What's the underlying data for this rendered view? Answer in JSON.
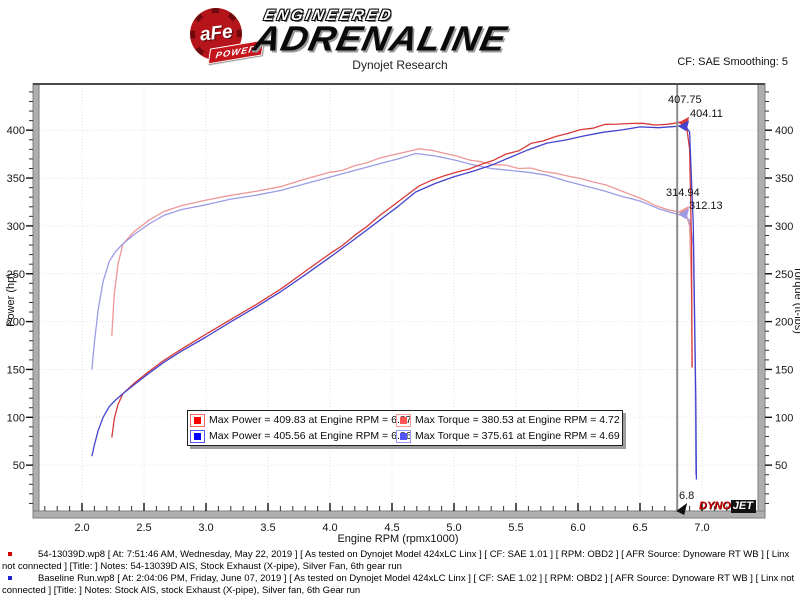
{
  "header": {
    "brand_afe": "aFe",
    "brand_power": "POWER",
    "brand_line1": "ENGINEERED",
    "brand_line2": "ADRENALINE",
    "title": "Dynojet Research",
    "smoothing": "CF: SAE Smoothing: 5"
  },
  "chart_data": {
    "type": "line",
    "title": "Dynojet Research",
    "xlabel": "Engine RPM (rpmx1000)",
    "ylabel_left": "Power (hp)",
    "ylabel_right": "Torque (ft-lbs)",
    "x_range": [
      1.65,
      7.42
    ],
    "y_range": [
      0,
      448
    ],
    "x_ticks": [
      2.0,
      2.5,
      3.0,
      3.5,
      4.0,
      4.5,
      5.0,
      5.5,
      6.0,
      6.5,
      7.0
    ],
    "y_ticks": [
      50,
      100,
      150,
      200,
      250,
      300,
      350,
      400
    ],
    "x_minor_step": 0.1,
    "y_minor_step": 10,
    "grid": "dotted",
    "legend_position": "bottom-center-inside",
    "cursor": {
      "rpm": 6.8,
      "label": "6.8"
    },
    "series": [
      {
        "name": "torque-54-13039D",
        "color": "#ee9797",
        "axis": "torque",
        "points": [
          [
            2.24,
            185
          ],
          [
            2.26,
            228
          ],
          [
            2.29,
            260
          ],
          [
            2.33,
            281
          ],
          [
            2.42,
            294
          ],
          [
            2.54,
            306
          ],
          [
            2.66,
            315
          ],
          [
            2.8,
            321
          ],
          [
            3.0,
            327
          ],
          [
            3.2,
            332
          ],
          [
            3.4,
            336
          ],
          [
            3.6,
            341
          ],
          [
            3.8,
            349
          ],
          [
            4.0,
            356
          ],
          [
            4.1,
            358
          ],
          [
            4.2,
            363
          ],
          [
            4.3,
            366
          ],
          [
            4.4,
            371
          ],
          [
            4.5,
            374
          ],
          [
            4.6,
            377
          ],
          [
            4.72,
            380.53
          ],
          [
            4.82,
            379
          ],
          [
            4.92,
            376
          ],
          [
            5.02,
            373
          ],
          [
            5.12,
            369
          ],
          [
            5.22,
            367
          ],
          [
            5.32,
            364
          ],
          [
            5.42,
            363.5
          ],
          [
            5.52,
            360
          ],
          [
            5.62,
            360.5
          ],
          [
            5.72,
            357
          ],
          [
            5.82,
            355
          ],
          [
            5.92,
            352
          ],
          [
            6.02,
            349.5
          ],
          [
            6.12,
            346
          ],
          [
            6.22,
            343
          ],
          [
            6.32,
            338
          ],
          [
            6.42,
            333
          ],
          [
            6.52,
            328
          ],
          [
            6.62,
            321.5
          ],
          [
            6.72,
            317
          ],
          [
            6.8,
            314.94
          ],
          [
            6.87,
            313.3
          ],
          [
            6.9,
            300
          ],
          [
            6.915,
            230
          ],
          [
            6.92,
            152
          ]
        ]
      },
      {
        "name": "torque-baseline",
        "color": "#9c9ce6",
        "axis": "torque",
        "points": [
          [
            2.08,
            150
          ],
          [
            2.1,
            178
          ],
          [
            2.13,
            212
          ],
          [
            2.17,
            242
          ],
          [
            2.22,
            263
          ],
          [
            2.27,
            273
          ],
          [
            2.32,
            280
          ],
          [
            2.42,
            291
          ],
          [
            2.54,
            302
          ],
          [
            2.66,
            311
          ],
          [
            2.8,
            317
          ],
          [
            3.0,
            322
          ],
          [
            3.2,
            328
          ],
          [
            3.4,
            332
          ],
          [
            3.6,
            337
          ],
          [
            3.8,
            344
          ],
          [
            4.0,
            351
          ],
          [
            4.2,
            358
          ],
          [
            4.4,
            365
          ],
          [
            4.55,
            370
          ],
          [
            4.69,
            375.61
          ],
          [
            4.85,
            373
          ],
          [
            5.0,
            369
          ],
          [
            5.15,
            364
          ],
          [
            5.3,
            360
          ],
          [
            5.45,
            358
          ],
          [
            5.6,
            356
          ],
          [
            5.75,
            353
          ],
          [
            5.9,
            347
          ],
          [
            6.05,
            342
          ],
          [
            6.2,
            337
          ],
          [
            6.35,
            331
          ],
          [
            6.5,
            326
          ],
          [
            6.65,
            318
          ],
          [
            6.8,
            312.13
          ],
          [
            6.86,
            310.5
          ],
          [
            6.9,
            306
          ],
          [
            6.93,
            280
          ],
          [
            6.945,
            150
          ],
          [
            6.95,
            40
          ]
        ]
      },
      {
        "name": "power-54-13039D",
        "color": "#d93a3a",
        "axis": "power",
        "points": [
          [
            2.24,
            78.9
          ],
          [
            2.26,
            98.1
          ],
          [
            2.29,
            113.4
          ],
          [
            2.33,
            124.7
          ],
          [
            2.42,
            135.5
          ],
          [
            2.54,
            148.0
          ],
          [
            2.66,
            159.5
          ],
          [
            2.8,
            171.1
          ],
          [
            3.0,
            186.8
          ],
          [
            3.2,
            202.3
          ],
          [
            3.4,
            217.5
          ],
          [
            3.6,
            233.7
          ],
          [
            3.8,
            252.5
          ],
          [
            4.0,
            271.1
          ],
          [
            4.1,
            279.5
          ],
          [
            4.2,
            290.3
          ],
          [
            4.3,
            299.6
          ],
          [
            4.4,
            310.8
          ],
          [
            4.5,
            320.4
          ],
          [
            4.6,
            330.2
          ],
          [
            4.72,
            341.9
          ],
          [
            4.82,
            347.8
          ],
          [
            4.92,
            352.2
          ],
          [
            5.02,
            356.2
          ],
          [
            5.12,
            359.4
          ],
          [
            5.22,
            364.4
          ],
          [
            5.32,
            368.6
          ],
          [
            5.42,
            375.1
          ],
          [
            5.52,
            378.4
          ],
          [
            5.62,
            386.2
          ],
          [
            5.72,
            388.8
          ],
          [
            5.82,
            393.4
          ],
          [
            5.92,
            396.7
          ],
          [
            6.02,
            400.6
          ],
          [
            6.12,
            402.1
          ],
          [
            6.22,
            406.2
          ],
          [
            6.32,
            406.4
          ],
          [
            6.42,
            407.0
          ],
          [
            6.52,
            407.2
          ],
          [
            6.62,
            405.4
          ],
          [
            6.72,
            406.2
          ],
          [
            6.8,
            407.75
          ],
          [
            6.87,
            409.83
          ],
          [
            6.9,
            380
          ],
          [
            6.915,
            280
          ],
          [
            6.92,
            152
          ]
        ]
      },
      {
        "name": "power-baseline",
        "color": "#4343cf",
        "axis": "power",
        "points": [
          [
            2.08,
            59.4
          ],
          [
            2.1,
            71.2
          ],
          [
            2.13,
            86.0
          ],
          [
            2.17,
            100.0
          ],
          [
            2.22,
            111.2
          ],
          [
            2.27,
            118.0
          ],
          [
            2.32,
            123.7
          ],
          [
            2.42,
            134.1
          ],
          [
            2.54,
            146.1
          ],
          [
            2.66,
            157.5
          ],
          [
            2.8,
            169.0
          ],
          [
            3.0,
            183.9
          ],
          [
            3.2,
            199.8
          ],
          [
            3.4,
            214.9
          ],
          [
            3.6,
            231.0
          ],
          [
            3.8,
            248.9
          ],
          [
            4.0,
            267.3
          ],
          [
            4.2,
            286.3
          ],
          [
            4.4,
            305.8
          ],
          [
            4.55,
            320.5
          ],
          [
            4.69,
            335.4
          ],
          [
            4.85,
            344.4
          ],
          [
            5.0,
            351.3
          ],
          [
            5.15,
            356.9
          ],
          [
            5.3,
            363.3
          ],
          [
            5.45,
            371.5
          ],
          [
            5.6,
            379.6
          ],
          [
            5.75,
            386.5
          ],
          [
            5.9,
            389.8
          ],
          [
            6.05,
            394.0
          ],
          [
            6.2,
            397.8
          ],
          [
            6.35,
            400.2
          ],
          [
            6.5,
            403.5
          ],
          [
            6.65,
            402.6
          ],
          [
            6.8,
            404.11
          ],
          [
            6.86,
            405.56
          ],
          [
            6.9,
            398
          ],
          [
            6.93,
            300
          ],
          [
            6.95,
            120
          ],
          [
            6.955,
            35
          ]
        ]
      }
    ],
    "cursor_markers": [
      {
        "value": 407.75,
        "color": "#d93a3a"
      },
      {
        "value": 404.11,
        "color": "#4343cf"
      },
      {
        "value": 314.94,
        "color": "#ee9797"
      },
      {
        "value": 312.13,
        "color": "#9c9ce6"
      }
    ]
  },
  "readouts": {
    "r1": {
      "text": "407.75",
      "color": "#d94040"
    },
    "r2": {
      "text": "404.11",
      "color": "#3c3cd0"
    },
    "r3": {
      "text": "314.94",
      "color": "#ec9a9a"
    },
    "r4": {
      "text": "312.13",
      "color": "#9c9ce0"
    }
  },
  "cursor_label": "6.8",
  "legend": {
    "items": [
      {
        "label": "Max Power = 409.83 at Engine RPM = 6.87",
        "swatch": "#ff0000"
      },
      {
        "label": "Max Torque = 380.53 at Engine RPM = 4.72",
        "swatch": "#ff5555"
      },
      {
        "label": "Max Power = 405.56 at Engine RPM = 6.86",
        "swatch": "#0000ff"
      },
      {
        "label": "Max Torque = 375.61 at Engine RPM = 4.69",
        "swatch": "#5555ff"
      }
    ]
  },
  "dynojet_logo": {
    "part1": "DYNO",
    "part2": "JET"
  },
  "footer": {
    "runs": [
      {
        "text": "54-13039D.wp8 [ At: 7:51:46 AM, Wednesday, May 22, 2019 ] [ As tested on Dynojet Model 424xLC Linx ] [ CF: SAE 1.01 ] [ RPM: OBD2 ] [ AFR Source: Dynoware RT WB ] [ Linx not connected ] [Title: ]  Notes: 54-13039D AIS, Stock Exhaust (X-pipe), Silver Fan, 6th gear run"
      },
      {
        "text": "Baseline Run.wp8 [ At: 2:04:06 PM, Friday, June 07, 2019 ] [ As tested on Dynojet Model 424xLC Linx ] [ CF: SAE 1.02 ] [ RPM: OBD2 ] [ AFR Source: Dynoware RT WB ] [ Linx not connected ] [Title: ]  Notes: Stock AIS, stock Exhaust (X-pipe), Silver fan, 6th Gear run"
      }
    ]
  }
}
